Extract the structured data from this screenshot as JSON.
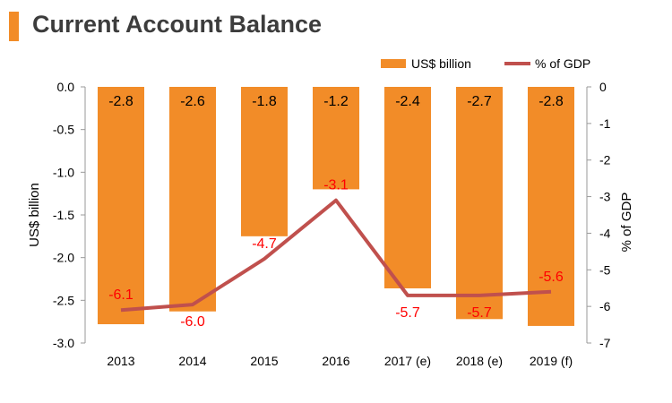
{
  "title": "Current Account Balance",
  "colors": {
    "bar": "#f28c28",
    "line": "#c0504d",
    "line_label": "#ff0000",
    "bar_label": "#000000",
    "axis": "#999999",
    "title_accent": "#f28c28"
  },
  "chart_data": {
    "type": "bar+line",
    "title": "Current Account Balance",
    "categories": [
      "2013",
      "2014",
      "2015",
      "2016",
      "2017 (e)",
      "2018 (e)",
      "2019 (f)"
    ],
    "series": [
      {
        "name": "US$ billion",
        "type": "bar",
        "axis": "left",
        "values": [
          -2.78,
          -2.63,
          -1.75,
          -1.2,
          -2.36,
          -2.72,
          -2.8
        ],
        "labels": [
          "-2.8",
          "-2.6",
          "-1.8",
          "-1.2",
          "-2.4",
          "-2.7",
          "-2.8"
        ]
      },
      {
        "name": "% of GDP",
        "type": "line",
        "axis": "right",
        "values": [
          -6.1,
          -5.95,
          -4.7,
          -3.1,
          -5.7,
          -5.7,
          -5.6
        ],
        "labels": [
          "-6.1",
          "-6.0",
          "-4.7",
          "-3.1",
          "-5.7",
          "-5.7",
          "-5.6"
        ]
      }
    ],
    "ylabel": "US$ billion",
    "y2label": "% of GDP",
    "ylim": [
      -3.0,
      0.0
    ],
    "yticks": [
      "0.0",
      "-0.5",
      "-1.0",
      "-1.5",
      "-2.0",
      "-2.5",
      "-3.0"
    ],
    "y2lim": [
      -7,
      0
    ],
    "y2ticks": [
      "0",
      "-1",
      "-2",
      "-3",
      "-4",
      "-5",
      "-6",
      "-7"
    ],
    "legend": [
      "US$ billion",
      "% of GDP"
    ],
    "legend_position": "top-right"
  }
}
